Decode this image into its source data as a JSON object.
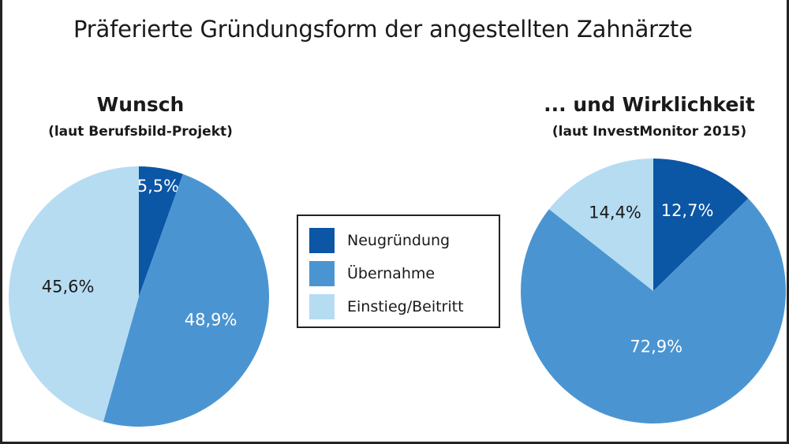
{
  "title": "Präferierte Gründungsform der angestellten Zahnärzte",
  "legend": {
    "items": [
      {
        "label": "Neugründung",
        "color": "#0b56a5"
      },
      {
        "label": "Übernahme",
        "color": "#4a95d1"
      },
      {
        "label": "Einstieg/Beitritt",
        "color": "#b6dcf2"
      }
    ]
  },
  "chart_data": [
    {
      "type": "pie",
      "title": "Wunsch",
      "subtitle": "(laut Berufsbild-Projekt)",
      "slices": [
        {
          "label": "Neugründung",
          "value": 5.5,
          "value_label": "5,5%",
          "color": "#0b56a5"
        },
        {
          "label": "Übernahme",
          "value": 48.9,
          "value_label": "48,9%",
          "color": "#4a95d1"
        },
        {
          "label": "Einstieg/Beitritt",
          "value": 45.6,
          "value_label": "45,6%",
          "color": "#b6dcf2"
        }
      ]
    },
    {
      "type": "pie",
      "title": "... und Wirklichkeit",
      "subtitle": "(laut InvestMonitor 2015)",
      "slices": [
        {
          "label": "Neugründung",
          "value": 12.7,
          "value_label": "12,7%",
          "color": "#0b56a5"
        },
        {
          "label": "Übernahme",
          "value": 72.9,
          "value_label": "72,9%",
          "color": "#4a95d1"
        },
        {
          "label": "Einstieg/Beitritt",
          "value": 14.4,
          "value_label": "14,4%",
          "color": "#b6dcf2"
        }
      ]
    }
  ]
}
